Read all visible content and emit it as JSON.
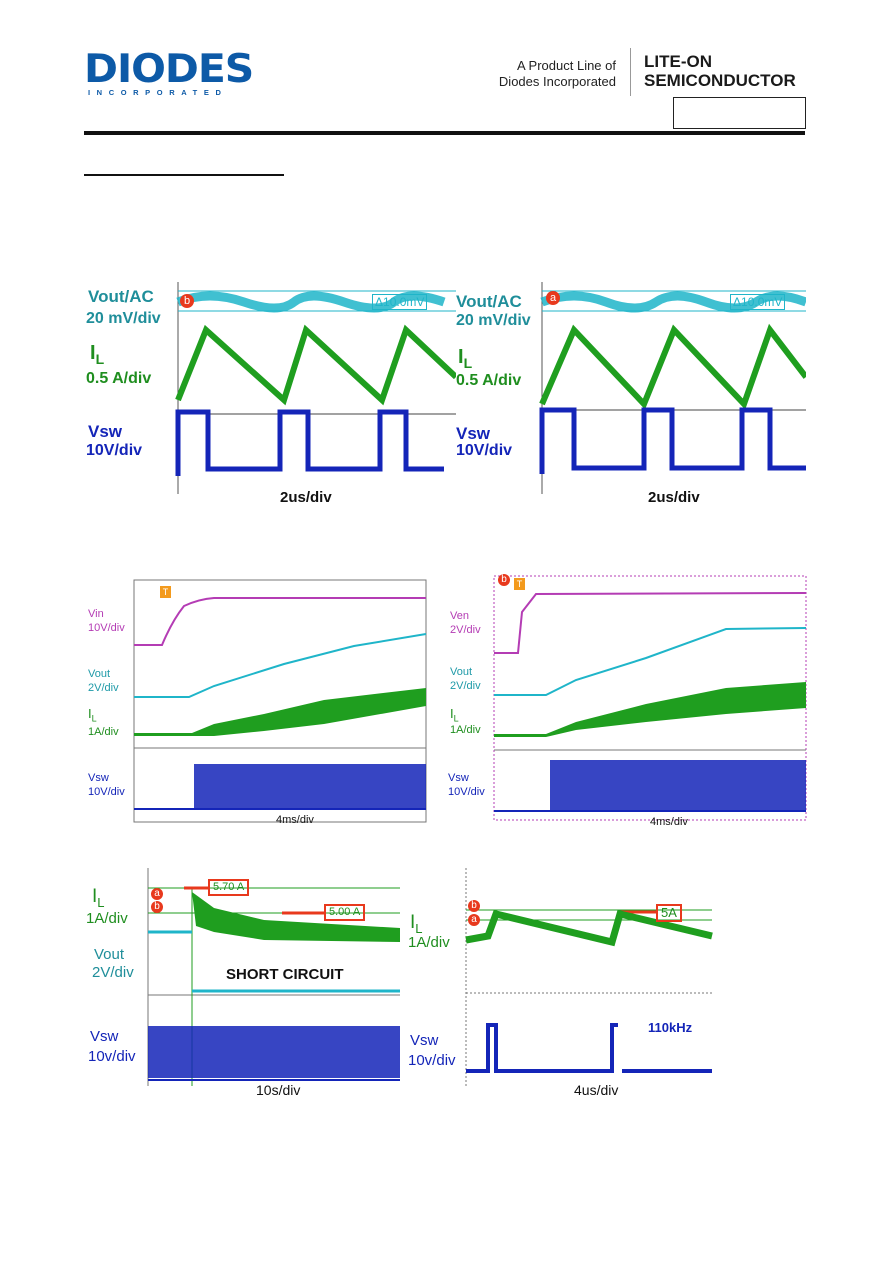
{
  "header": {
    "logo": {
      "name": "DIODES",
      "sub": "INCORPORATED"
    },
    "tagline": [
      "A Product Line of",
      "Diodes Incorporated"
    ],
    "brand": [
      "LITE-ON",
      "SEMICONDUCTOR"
    ]
  },
  "panels": {
    "p1": {
      "ch1": "Vout/AC",
      "ch1_scale": "20 mV/div",
      "marker": "b",
      "delta": "Δ10.0mV",
      "ch2": "I",
      "ch2_sub": "L",
      "ch2_scale": "0.5 A/div",
      "ch3": "Vsw",
      "ch3_scale": "10V/div",
      "time": "2us/div"
    },
    "p2": {
      "ch1": "Vout/AC",
      "ch1_scale": "20 mV/div",
      "marker": "a",
      "delta": "Δ10.0mV",
      "ch2": "I",
      "ch2_sub": "L",
      "ch2_scale": "0.5 A/div",
      "ch3": "Vsw",
      "ch3_scale": "10V/div",
      "time": "2us/div"
    },
    "p3": {
      "trigger": "T",
      "ch1": "Vin",
      "ch1_scale": "10V/div",
      "ch2": "Vout",
      "ch2_scale": "2V/div",
      "ch3": "I",
      "ch3_sub": "L",
      "ch3_scale": "1A/div",
      "ch4": "Vsw",
      "ch4_scale": "10V/div",
      "time": "4ms/div"
    },
    "p4": {
      "marker": "b",
      "trigger": "T",
      "ch1": "Ven",
      "ch1_scale": "2V/div",
      "ch2": "Vout",
      "ch2_scale": "2V/div",
      "ch3": "I",
      "ch3_sub": "L",
      "ch3_scale": "1A/div",
      "ch4": "Vsw",
      "ch4_scale": "10V/div",
      "time": "4ms/div"
    },
    "p5": {
      "ch1": "I",
      "ch1_sub": "L",
      "ch1_scale": "1A/div",
      "marker_a": "a",
      "marker_b": "b",
      "peak": "5.70 A",
      "limit": "5.00 A",
      "ch2": "Vout",
      "ch2_scale": "2V/div",
      "event": "SHORT CIRCUIT",
      "ch3": "Vsw",
      "ch3_scale": "10v/div",
      "time": "10s/div"
    },
    "p6": {
      "ch1": "I",
      "ch1_sub": "L",
      "ch1_scale": "1A/div",
      "marker_a": "a",
      "marker_b": "b",
      "limit": "5A",
      "ch2": "Vsw",
      "ch2_scale": "10v/div",
      "freq": "110kHz",
      "time": "4us/div"
    }
  },
  "colors": {
    "brand": "#0d5aa7",
    "cyan": "#1fb5c9",
    "green": "#1f9e1f",
    "blue": "#1425b8",
    "magenta": "#b43cb4",
    "marker": "#e8391d"
  }
}
